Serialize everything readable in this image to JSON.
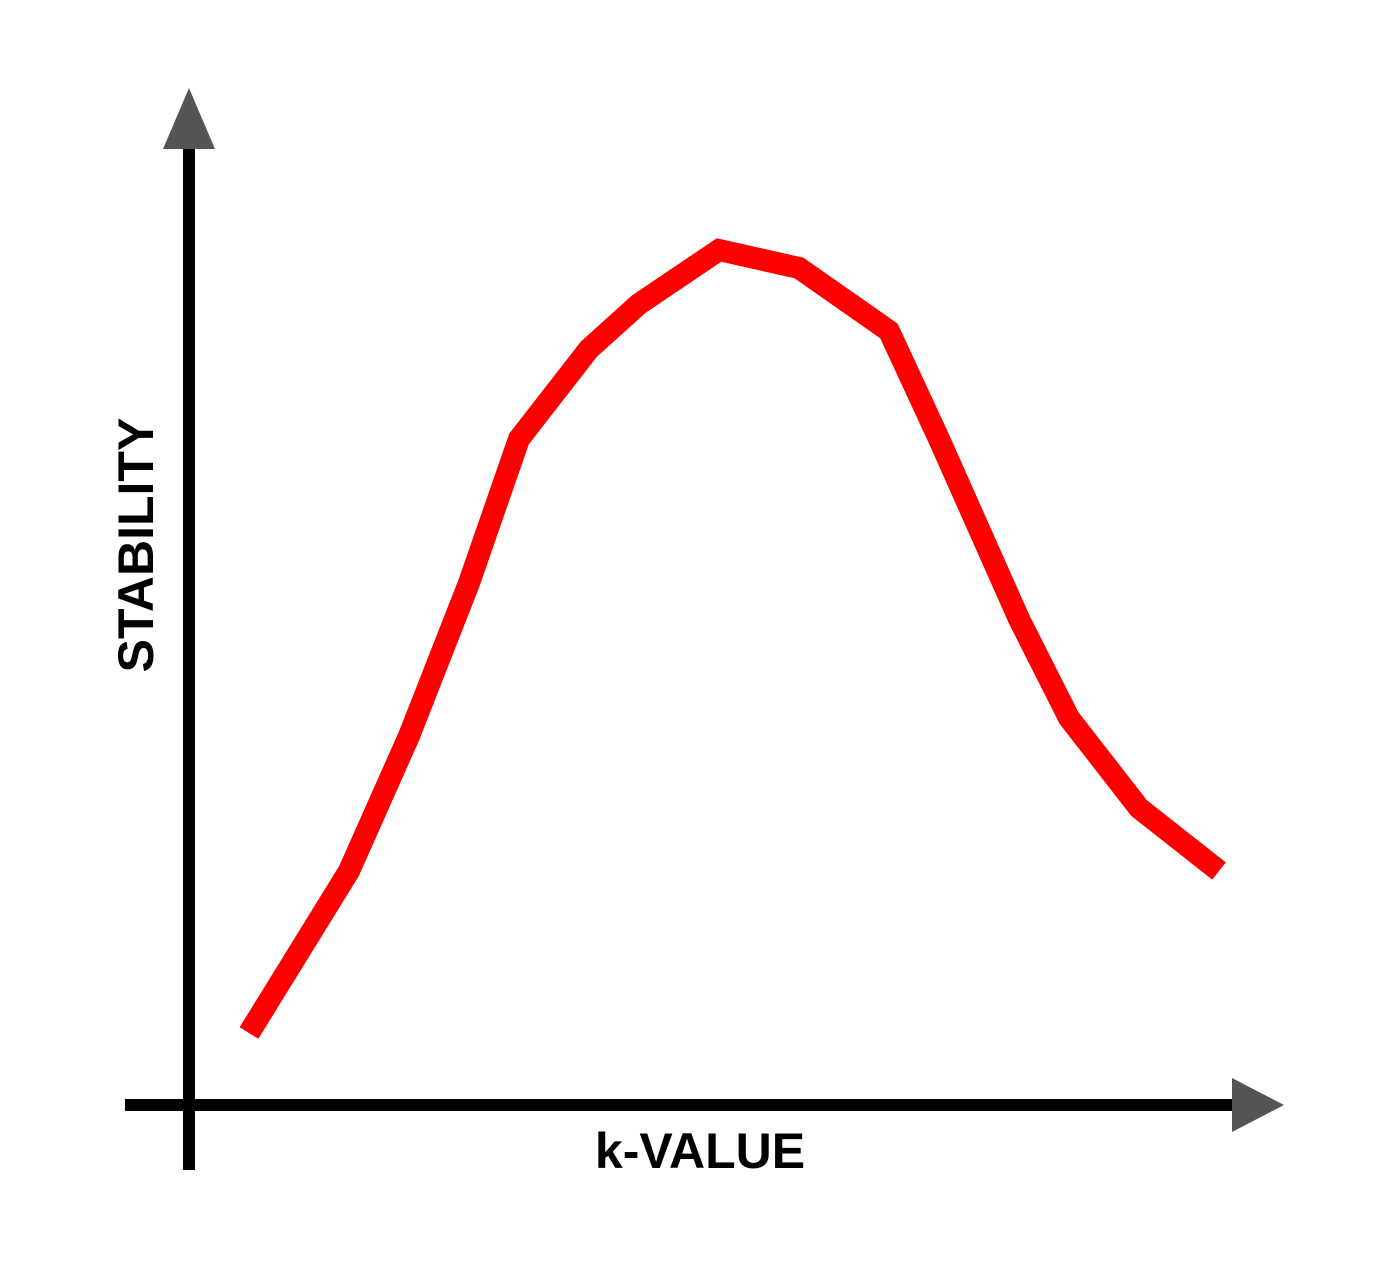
{
  "chart_data": {
    "type": "line",
    "title": "",
    "xlabel": "k-VALUE",
    "ylabel": "STABILITY",
    "xlim": [
      0,
      1
    ],
    "ylim": [
      0,
      1
    ],
    "grid": false,
    "legend": "none",
    "series": [
      {
        "color": "#ff0000",
        "x": [
          0.06,
          0.16,
          0.22,
          0.28,
          0.33,
          0.4,
          0.45,
          0.53,
          0.61,
          0.7,
          0.75,
          0.83,
          0.88,
          0.95,
          1.03
        ],
        "y": [
          0.08,
          0.26,
          0.41,
          0.58,
          0.74,
          0.84,
          0.89,
          0.95,
          0.93,
          0.86,
          0.74,
          0.54,
          0.43,
          0.33,
          0.26
        ]
      }
    ]
  },
  "colors": {
    "axis": "#000000",
    "arrow": "#555555",
    "line": "#ff0000"
  }
}
